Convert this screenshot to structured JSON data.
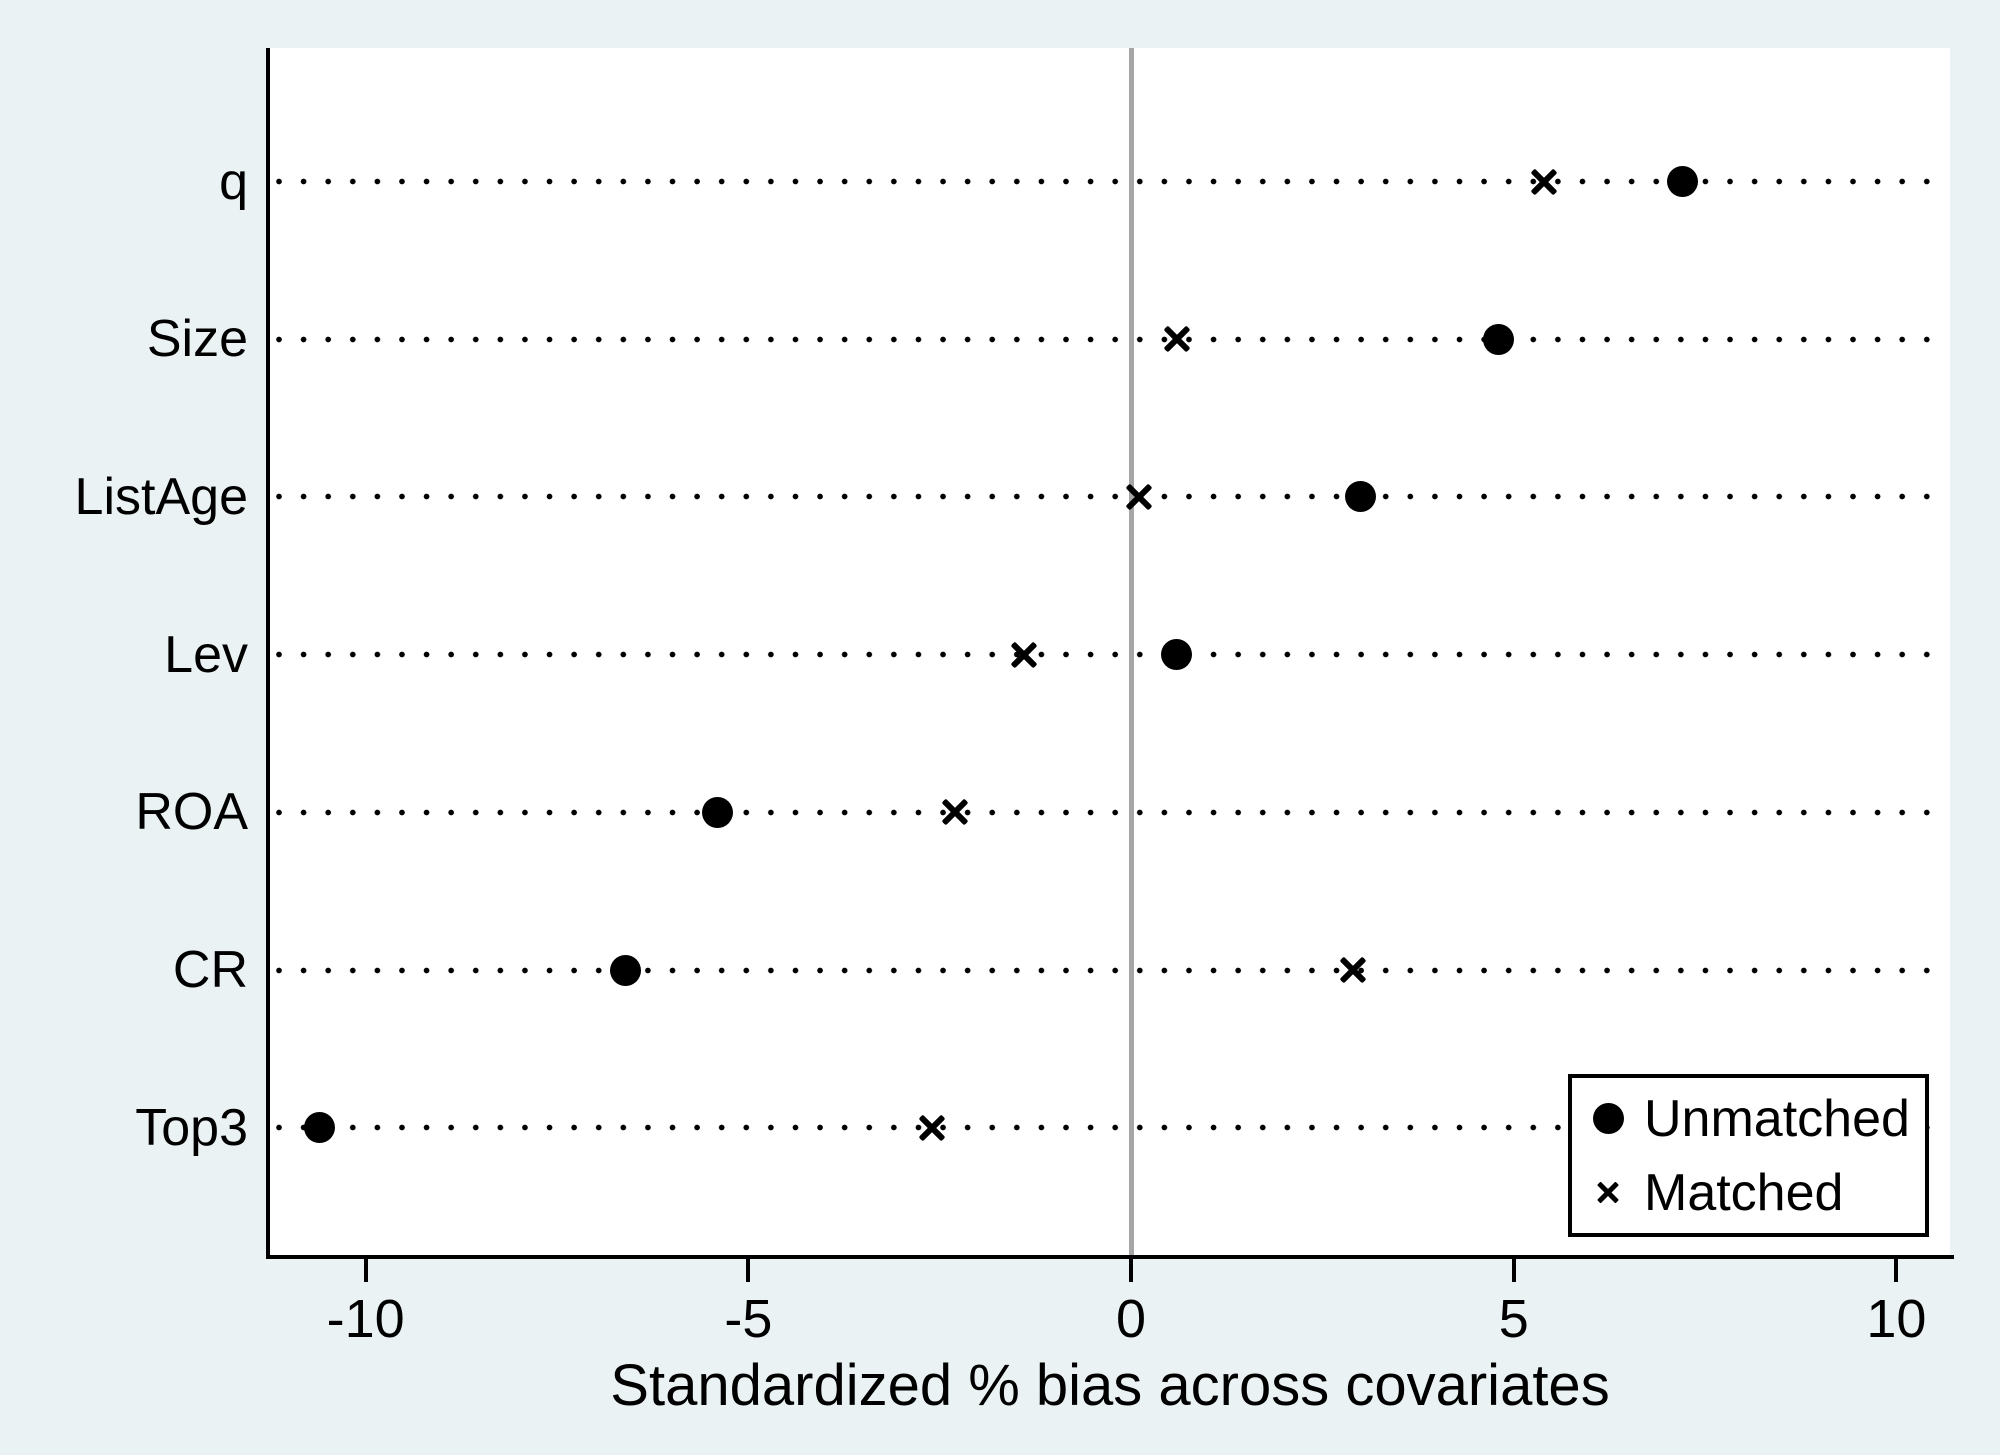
{
  "figure": {
    "background_color": "#eaf2f3",
    "plot_background_color": "#ffffff",
    "axis_color": "#000000",
    "marker_color": "#000000",
    "zero_line_color": "#a6a6a6"
  },
  "chart_data": {
    "type": "scatter",
    "title": "",
    "xlabel": "Standardized % bias across covariates",
    "ylabel": "",
    "categories": [
      "q",
      "Size",
      "ListAge",
      "Lev",
      "ROA",
      "CR",
      "Top3"
    ],
    "series": [
      {
        "name": "Unmatched",
        "marker": "circle",
        "values": [
          7.2,
          4.8,
          3.0,
          0.6,
          -5.4,
          -6.6,
          -10.6
        ]
      },
      {
        "name": "Matched",
        "marker": "x",
        "values": [
          5.4,
          0.6,
          0.1,
          -1.4,
          -2.3,
          2.9,
          -2.6
        ]
      }
    ],
    "x_ticks": [
      -10,
      -5,
      0,
      5,
      10
    ],
    "xlim": [
      -11.25,
      10.7
    ],
    "grid": "horizontal-dotted-rows",
    "zero_reference_line": true,
    "legend_position": "bottom-right"
  },
  "legend": {
    "items": [
      {
        "marker": "circle-icon",
        "label": "Unmatched"
      },
      {
        "marker": "x-icon",
        "label": "Matched"
      }
    ]
  }
}
